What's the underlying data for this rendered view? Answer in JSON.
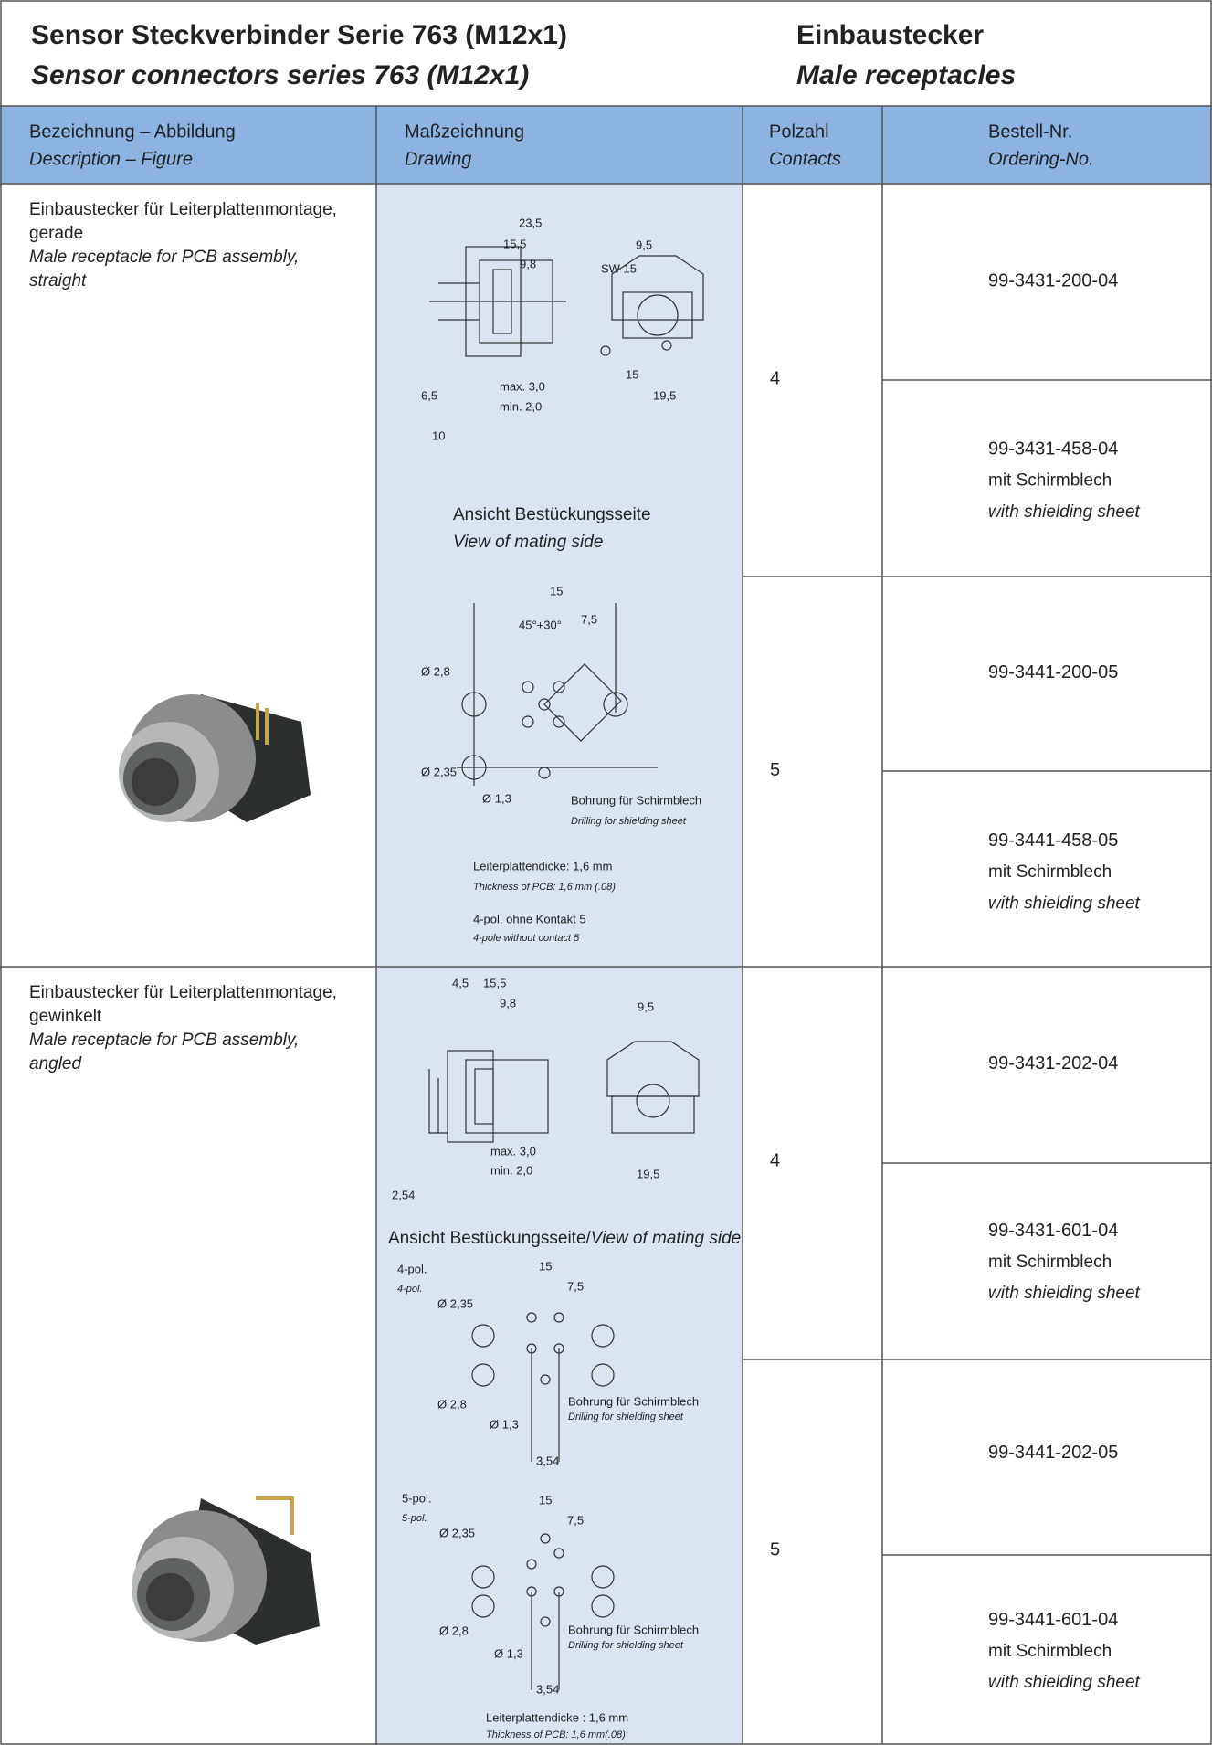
{
  "header": {
    "title_de": "Sensor Steckverbinder Serie 763 (M12x1)",
    "title_en": "Sensor connectors series 763 (M12x1)",
    "subtitle_de": "Einbaustecker",
    "subtitle_en": "Male receptacles"
  },
  "table": {
    "columns": [
      {
        "de": "Bezeichnung – Abbildung",
        "en": "Description – Figure"
      },
      {
        "de": "Maßzeichnung",
        "en": "Drawing"
      },
      {
        "de": "Polzahl",
        "en": "Contacts"
      },
      {
        "de": "Bestell-Nr.",
        "en": "Ordering-No."
      }
    ],
    "sections": [
      {
        "description_de": [
          "Einbaustecker für Leiterplattenmontage,",
          "gerade"
        ],
        "description_en": [
          "Male receptacle for PCB assembly,",
          "straight"
        ],
        "drawing": {
          "view_de": "Ansicht Bestückungsseite",
          "view_en": "View of mating side",
          "drilling_de": [
            "Bohrung für Schirmblech"
          ],
          "drilling_en": [
            "Drilling for shielding sheet"
          ],
          "pcb_de": "Leiterplattendicke: 1,6 mm",
          "pcb_en": "Thickness of PCB: 1,6 mm (.08)",
          "note_de": "4-pol. ohne Kontakt 5",
          "note_en": "4-pole without contact 5",
          "dimensions": [
            "23,5",
            "15,5",
            "9,8",
            "9,5",
            "SW 15",
            "15",
            "19,5",
            "max. 3,0",
            "min. 2,0",
            "10",
            "6,5",
            "15",
            "7,5",
            "Ø 2,8",
            "Ø 2,35",
            "Ø 1,3",
            "45°+30°"
          ]
        },
        "groups": [
          {
            "contacts": "4",
            "orders": [
              {
                "number": "99-3431-200-04"
              },
              {
                "number": "99-3431-458-04",
                "note_de": "mit Schirmblech",
                "note_en": "with shielding sheet"
              }
            ]
          },
          {
            "contacts": "5",
            "orders": [
              {
                "number": "99-3441-200-05"
              },
              {
                "number": "99-3441-458-05",
                "note_de": "mit Schirmblech",
                "note_en": "with shielding sheet"
              }
            ]
          }
        ]
      },
      {
        "description_de": [
          "Einbaustecker für Leiterplattenmontage,",
          "gewinkelt"
        ],
        "description_en": [
          "Male receptacle for PCB assembly,",
          "angled"
        ],
        "drawing": {
          "view_de": "Ansicht Bestückungsseite/",
          "view_en": "View of mating side",
          "pole4_de": "4-pol.",
          "pole4_en": "4-pol.",
          "pole5_de": "5-pol.",
          "pole5_en": "5-pol.",
          "drilling_de": [
            "Bohrung für Schirmblech",
            "Bohrung für Schirmblech"
          ],
          "drilling_en": [
            "Drilling for shielding sheet",
            "Drilling for shielding sheet"
          ],
          "pcb_de": "Leiterplattendicke : 1,6 mm",
          "pcb_en": "Thickness of PCB: 1,6 mm(.08)",
          "dimensions": [
            "4,5",
            "15,5",
            "9,8",
            "9,5",
            "max. 3,0",
            "min. 2,0",
            "2,54",
            "19,5",
            "15",
            "7,5",
            "Ø 2,35",
            "Ø 2,8",
            "Ø 1,3",
            "3,54",
            "15",
            "7,5",
            "Ø 2,35",
            "Ø 2,8",
            "Ø 1,3",
            "3,54"
          ]
        },
        "groups": [
          {
            "contacts": "4",
            "orders": [
              {
                "number": "99-3431-202-04"
              },
              {
                "number": "99-3431-601-04",
                "note_de": "mit Schirmblech",
                "note_en": "with shielding sheet"
              }
            ]
          },
          {
            "contacts": "5",
            "orders": [
              {
                "number": "99-3441-202-05"
              },
              {
                "number": "99-3441-601-04",
                "note_de": "mit Schirmblech",
                "note_en": "with shielding sheet"
              }
            ]
          }
        ]
      }
    ]
  }
}
